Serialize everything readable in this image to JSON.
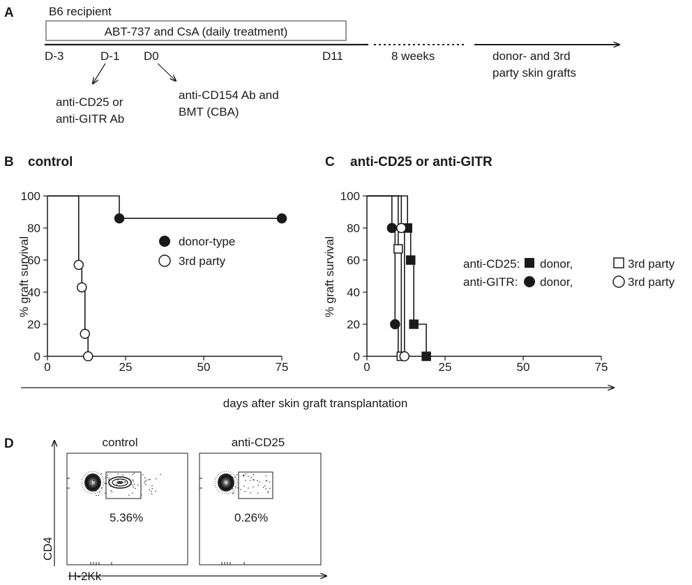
{
  "panel_a": {
    "letter": "A",
    "recipient": "B6 recipient",
    "treatment": "ABT-737 and CsA (daily treatment)",
    "days": [
      "D-3",
      "D-1",
      "D0",
      "D11"
    ],
    "weeks": "8 weeks",
    "grafts": [
      "donor- and 3rd",
      "party skin grafts"
    ],
    "note_d_minus1": [
      "anti-CD25 or",
      "anti-GITR Ab"
    ],
    "note_d0": [
      "anti-CD154 Ab and",
      "BMT (CBA)"
    ]
  },
  "panel_b": {
    "letter": "B",
    "title": "control",
    "legend": [
      "donor-type",
      "3rd party"
    ]
  },
  "panel_c": {
    "letter": "C",
    "title": "anti-CD25 or anti-GITR",
    "legend_row1": {
      "group": "anti-CD25:",
      "donor": "donor,",
      "third": "3rd party"
    },
    "legend_row2": {
      "group": "anti-GITR:",
      "donor": "donor,",
      "third": "3rd party"
    }
  },
  "shared_axes": {
    "ylabel": "% graft survival",
    "xlabel": "days after skin graft transplantation"
  },
  "panel_d": {
    "letter": "D",
    "ylabel": "CD4",
    "xlabel": "H-2Kk",
    "plots": [
      {
        "title": "control",
        "percent": "5.36%"
      },
      {
        "title": "anti-CD25",
        "percent": "0.26%"
      }
    ]
  },
  "chart_data": [
    {
      "type": "line",
      "title": "control",
      "ylabel": "% graft survival",
      "xlim": [
        0,
        75
      ],
      "ylim": [
        0,
        100
      ],
      "x_ticks": [
        0,
        25,
        50,
        75
      ],
      "y_ticks": [
        0,
        20,
        40,
        60,
        80,
        100
      ],
      "series": [
        {
          "name": "donor-type",
          "marker": "filled-circle",
          "steps": [
            [
              0,
              100
            ],
            [
              23,
              100
            ],
            [
              23,
              86
            ],
            [
              75,
              86
            ]
          ],
          "points": [
            [
              23,
              86
            ],
            [
              75,
              86
            ]
          ]
        },
        {
          "name": "3rd party",
          "marker": "open-circle",
          "steps": [
            [
              0,
              100
            ],
            [
              10,
              100
            ],
            [
              10,
              57
            ],
            [
              11,
              57
            ],
            [
              11,
              43
            ],
            [
              12,
              43
            ],
            [
              12,
              14
            ],
            [
              13,
              14
            ],
            [
              13,
              0
            ]
          ],
          "points": [
            [
              10,
              57
            ],
            [
              11,
              43
            ],
            [
              12,
              14
            ],
            [
              13,
              0
            ]
          ]
        }
      ]
    },
    {
      "type": "line",
      "title": "anti-CD25 or anti-GITR",
      "ylabel": "% graft survival",
      "xlim": [
        0,
        75
      ],
      "ylim": [
        0,
        100
      ],
      "x_ticks": [
        0,
        25,
        50,
        75
      ],
      "y_ticks": [
        0,
        20,
        40,
        60,
        80,
        100
      ],
      "series": [
        {
          "name": "anti-CD25 donor",
          "marker": "filled-square",
          "steps": [
            [
              0,
              100
            ],
            [
              13,
              100
            ],
            [
              13,
              80
            ],
            [
              14,
              80
            ],
            [
              14,
              60
            ],
            [
              15,
              60
            ],
            [
              15,
              20
            ],
            [
              19,
              20
            ],
            [
              19,
              0
            ]
          ],
          "points": [
            [
              13,
              80
            ],
            [
              14,
              60
            ],
            [
              15,
              20
            ],
            [
              19,
              0
            ]
          ]
        },
        {
          "name": "anti-CD25 3rd party",
          "marker": "open-square",
          "steps": [
            [
              0,
              100
            ],
            [
              10,
              100
            ],
            [
              10,
              67
            ],
            [
              11,
              67
            ],
            [
              11,
              0
            ]
          ],
          "points": [
            [
              10,
              67
            ],
            [
              11,
              0
            ]
          ]
        },
        {
          "name": "anti-GITR donor",
          "marker": "filled-circle",
          "steps": [
            [
              0,
              100
            ],
            [
              8,
              100
            ],
            [
              8,
              80
            ],
            [
              9,
              80
            ],
            [
              9,
              20
            ],
            [
              10,
              20
            ],
            [
              10,
              0
            ]
          ],
          "points": [
            [
              8,
              80
            ],
            [
              9,
              20
            ]
          ]
        },
        {
          "name": "anti-GITR 3rd party",
          "marker": "open-circle",
          "steps": [
            [
              0,
              100
            ],
            [
              11,
              100
            ],
            [
              11,
              80
            ],
            [
              12,
              80
            ],
            [
              12,
              0
            ]
          ],
          "points": [
            [
              11,
              80
            ],
            [
              12,
              0
            ]
          ]
        }
      ]
    }
  ]
}
